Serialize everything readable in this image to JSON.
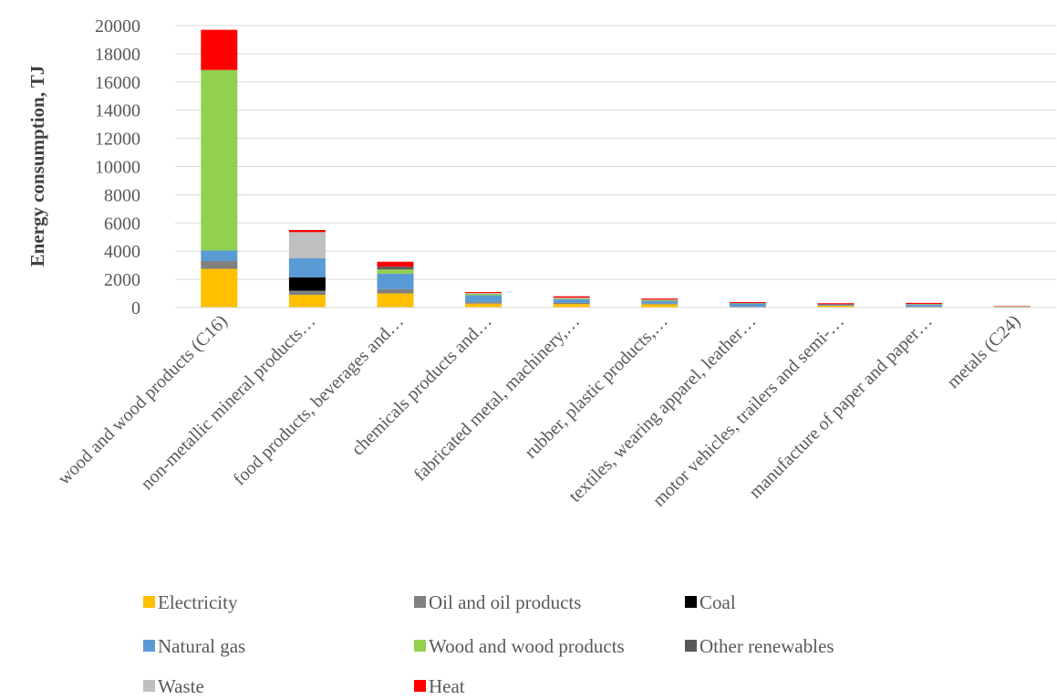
{
  "chart_data": {
    "type": "bar",
    "stacked": true,
    "title": "",
    "xlabel": "",
    "ylabel": "Energy consumption, TJ",
    "ylim": [
      0,
      20000
    ],
    "yticks": [
      0,
      2000,
      4000,
      6000,
      8000,
      10000,
      12000,
      14000,
      16000,
      18000,
      20000
    ],
    "grid": true,
    "legend_position": "bottom",
    "categories": [
      "wood and wood products (C16)",
      "non-metallic mineral products…",
      "food products, beverages and…",
      "chemicals products and…",
      "fabricated metal, machinery,…",
      "rubber, plastic products,…",
      "textiles, wearing apparel, leather…",
      "motor vehicles, trailers and semi-…",
      "manufacture of paper and paper…",
      "metals (C24)"
    ],
    "series": [
      {
        "name": "Electricity",
        "color": "#FFC000",
        "values": [
          2750,
          900,
          1000,
          280,
          250,
          230,
          50,
          140,
          60,
          40
        ]
      },
      {
        "name": "Oil and oil products",
        "color": "#808080",
        "values": [
          550,
          300,
          300,
          100,
          100,
          50,
          10,
          20,
          10,
          5
        ]
      },
      {
        "name": "Coal",
        "color": "#000000",
        "values": [
          0,
          950,
          0,
          0,
          0,
          0,
          0,
          0,
          0,
          0
        ]
      },
      {
        "name": "Natural gas",
        "color": "#5B9BD5",
        "values": [
          750,
          1350,
          1100,
          500,
          250,
          200,
          250,
          70,
          150,
          20
        ]
      },
      {
        "name": "Wood and wood products",
        "color": "#92D050",
        "values": [
          12800,
          0,
          300,
          100,
          50,
          60,
          10,
          0,
          30,
          5
        ]
      },
      {
        "name": "Other renewables",
        "color": "#595959",
        "values": [
          0,
          0,
          200,
          0,
          0,
          0,
          0,
          0,
          0,
          0
        ]
      },
      {
        "name": "Waste",
        "color": "#BFBFBF",
        "values": [
          0,
          1850,
          0,
          50,
          50,
          20,
          0,
          0,
          0,
          0
        ]
      },
      {
        "name": "Heat",
        "color": "#FF0000",
        "values": [
          2850,
          150,
          350,
          70,
          100,
          80,
          70,
          80,
          80,
          30
        ]
      }
    ]
  }
}
